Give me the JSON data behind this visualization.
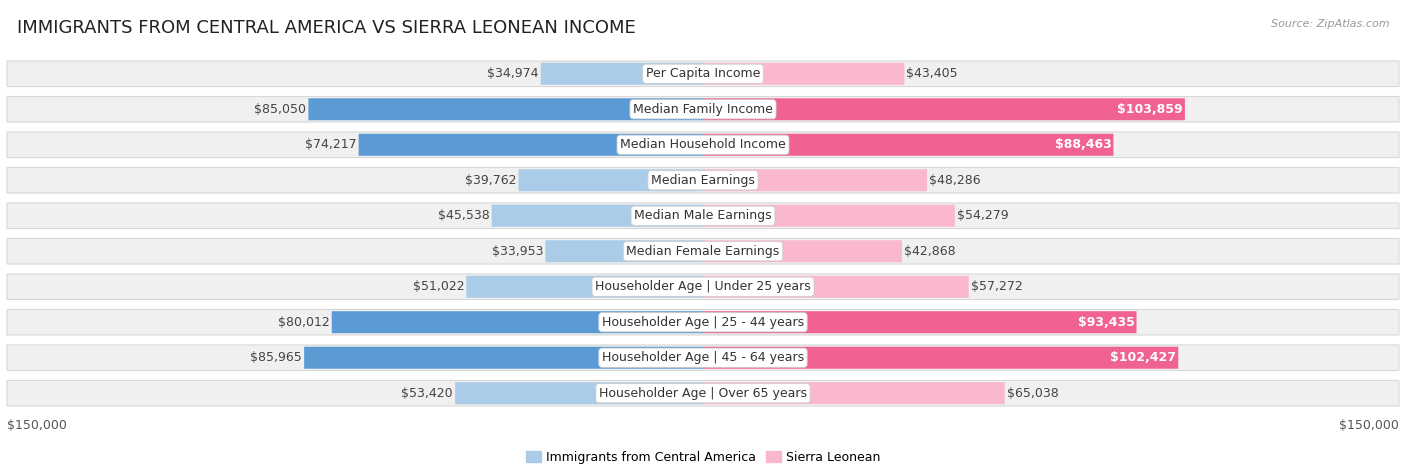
{
  "title": "IMMIGRANTS FROM CENTRAL AMERICA VS SIERRA LEONEAN INCOME",
  "source": "Source: ZipAtlas.com",
  "categories": [
    "Per Capita Income",
    "Median Family Income",
    "Median Household Income",
    "Median Earnings",
    "Median Male Earnings",
    "Median Female Earnings",
    "Householder Age | Under 25 years",
    "Householder Age | 25 - 44 years",
    "Householder Age | 45 - 64 years",
    "Householder Age | Over 65 years"
  ],
  "left_values": [
    34974,
    85050,
    74217,
    39762,
    45538,
    33953,
    51022,
    80012,
    85965,
    53420
  ],
  "right_values": [
    43405,
    103859,
    88463,
    48286,
    54279,
    42868,
    57272,
    93435,
    102427,
    65038
  ],
  "left_labels": [
    "$34,974",
    "$85,050",
    "$74,217",
    "$39,762",
    "$45,538",
    "$33,953",
    "$51,022",
    "$80,012",
    "$85,965",
    "$53,420"
  ],
  "right_labels": [
    "$43,405",
    "$103,859",
    "$88,463",
    "$48,286",
    "$54,279",
    "$42,868",
    "$57,272",
    "$93,435",
    "$102,427",
    "$65,038"
  ],
  "left_color_light": "#aacce8",
  "left_color_dark": "#5b9bd5",
  "right_color_light": "#f9b8d0",
  "right_color_dark": "#f06292",
  "max_value": 150000,
  "xlabel_left": "$150,000",
  "xlabel_right": "$150,000",
  "legend_left": "Immigrants from Central America",
  "legend_right": "Sierra Leonean",
  "bg_color": "#ffffff",
  "row_bg": "#f0f0f0",
  "row_border": "#d8d8d8",
  "title_fontsize": 13,
  "label_fontsize": 9,
  "source_fontsize": 8
}
